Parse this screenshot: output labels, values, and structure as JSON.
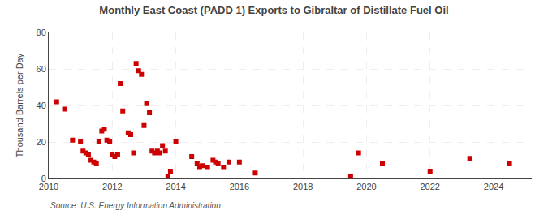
{
  "chart_data": {
    "type": "scatter",
    "title": "Monthly East Coast (PADD 1) Exports to Gibraltar of Distillate Fuel Oil",
    "ylabel": "Thousand Barrels per Day",
    "source": "Source: U.S. Energy Information Administration",
    "x": [
      2010.25,
      2010.5,
      2010.75,
      2011.0,
      2011.08,
      2011.17,
      2011.25,
      2011.33,
      2011.42,
      2011.5,
      2011.58,
      2011.67,
      2011.75,
      2011.83,
      2011.92,
      2012.0,
      2012.08,
      2012.17,
      2012.25,
      2012.33,
      2012.5,
      2012.58,
      2012.67,
      2012.75,
      2012.83,
      2012.92,
      2013.0,
      2013.08,
      2013.17,
      2013.25,
      2013.33,
      2013.42,
      2013.5,
      2013.58,
      2013.67,
      2013.75,
      2013.83,
      2014.0,
      2014.5,
      2014.67,
      2014.75,
      2014.83,
      2015.0,
      2015.17,
      2015.25,
      2015.33,
      2015.5,
      2015.67,
      2016.0,
      2016.5,
      2019.5,
      2019.75,
      2020.5,
      2022.0,
      2023.25,
      2024.5
    ],
    "values": [
      42,
      38,
      21,
      20,
      15,
      14,
      13,
      10,
      9,
      8,
      20,
      26,
      27,
      21,
      20,
      13,
      12,
      13,
      52,
      37,
      25,
      24,
      14,
      63,
      59,
      57,
      29,
      41,
      36,
      15,
      14,
      15,
      14,
      18,
      15,
      1,
      4,
      20,
      12,
      8,
      6,
      7,
      6,
      10,
      9,
      8,
      6,
      9,
      9,
      3,
      1,
      14,
      8,
      4,
      11,
      8
    ],
    "color": "#cc0000",
    "marker": "square",
    "xlim": [
      2010,
      2025.2
    ],
    "xticks": [
      2010,
      2012,
      2014,
      2016,
      2018,
      2020,
      2022,
      2024
    ],
    "ylim": [
      0,
      80
    ],
    "yticks": [
      0,
      20,
      40,
      60,
      80
    ],
    "grid": true
  }
}
